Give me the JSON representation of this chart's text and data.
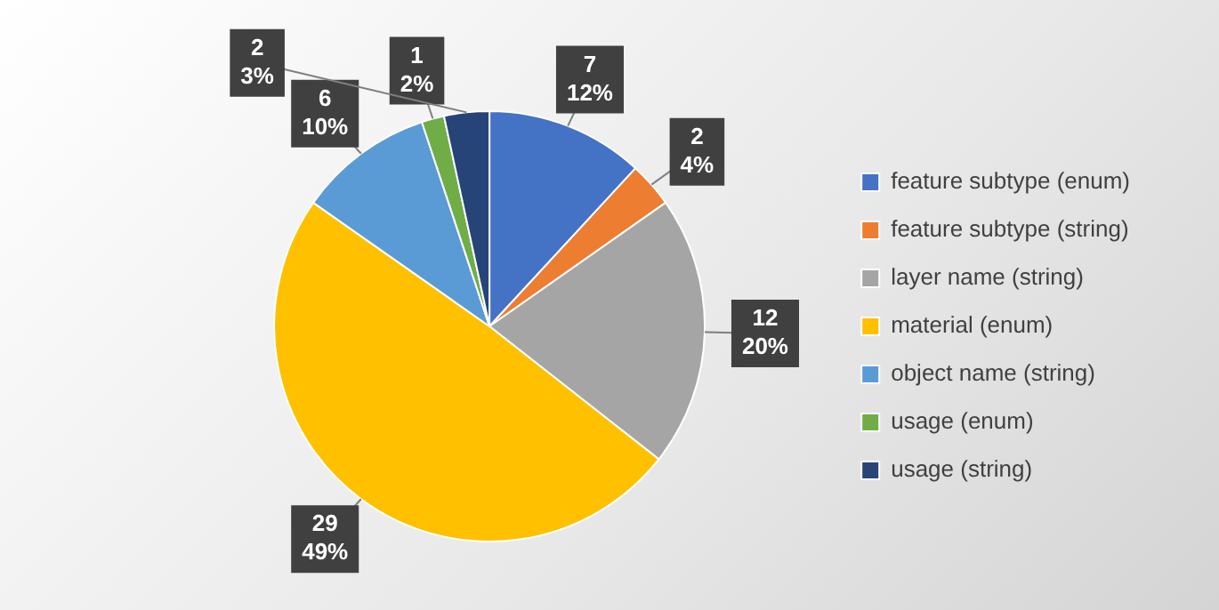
{
  "chart_data": {
    "type": "pie",
    "categories": [
      "feature subtype (enum)",
      "feature subtype (string)",
      "layer name (string)",
      "material (enum)",
      "object name (string)",
      "usage (enum)",
      "usage (string)"
    ],
    "values": [
      7,
      2,
      12,
      29,
      6,
      1,
      2
    ],
    "colors": [
      "#4472c4",
      "#ed7d31",
      "#a5a5a5",
      "#ffc000",
      "#5b9bd5",
      "#70ad47",
      "#264478"
    ],
    "value_labels": [
      "7\n12%",
      "2\n4%",
      "12\n20%",
      "29\n49%",
      "6\n10%",
      "1\n2%",
      "2\n3%"
    ],
    "legend": "right"
  }
}
